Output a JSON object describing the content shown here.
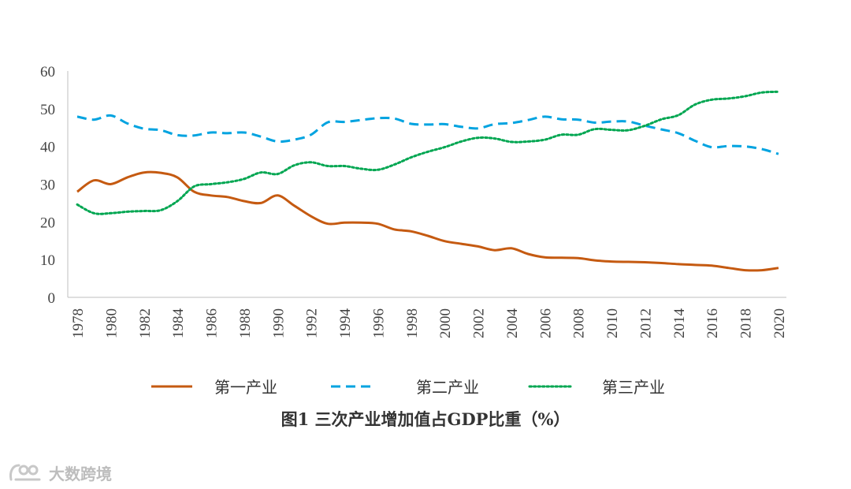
{
  "chart_data": {
    "type": "line",
    "title": "图1  三次产业增加值占GDP比重（%）",
    "xlabel": "",
    "ylabel": "",
    "ylim": [
      0,
      60
    ],
    "yticks": [
      "0",
      "10",
      "20",
      "30",
      "40",
      "50",
      "60"
    ],
    "x": [
      1978,
      1979,
      1980,
      1981,
      1982,
      1983,
      1984,
      1985,
      1986,
      1987,
      1988,
      1989,
      1990,
      1991,
      1992,
      1993,
      1994,
      1995,
      1996,
      1997,
      1998,
      1999,
      2000,
      2001,
      2002,
      2003,
      2004,
      2005,
      2006,
      2007,
      2008,
      2009,
      2010,
      2011,
      2012,
      2013,
      2014,
      2015,
      2016,
      2017,
      2018,
      2019,
      2020
    ],
    "xtick_labels": [
      "1978",
      "1980",
      "1982",
      "1984",
      "1986",
      "1988",
      "1990",
      "1992",
      "1994",
      "1996",
      "1998",
      "2000",
      "2002",
      "2004",
      "2006",
      "2008",
      "2010",
      "2012",
      "2014",
      "2016",
      "2018",
      "2020"
    ],
    "legend_position": "bottom",
    "series": [
      {
        "name": "第一产业",
        "color": "#c55a11",
        "style": "solid",
        "values": [
          28,
          31,
          30,
          31.8,
          33.1,
          33,
          31.8,
          28,
          27,
          26.6,
          25.5,
          25,
          27,
          24.3,
          21.5,
          19.5,
          19.8,
          19.8,
          19.5,
          18,
          17.5,
          16.3,
          14.9,
          14.2,
          13.5,
          12.5,
          13,
          11.5,
          10.6,
          10.5,
          10.4,
          9.8,
          9.5,
          9.4,
          9.3,
          9.1,
          8.8,
          8.6,
          8.4,
          7.8,
          7.2,
          7.2,
          7.8
        ]
      },
      {
        "name": "第二产业",
        "color": "#00a3e0",
        "style": "dashed",
        "values": [
          47.9,
          47.1,
          48.2,
          46.1,
          44.7,
          44.3,
          43,
          42.9,
          43.7,
          43.5,
          43.7,
          42.6,
          41.3,
          41.8,
          43.1,
          46.4,
          46.5,
          47,
          47.5,
          47.4,
          46,
          45.8,
          45.9,
          45.2,
          44.8,
          45.9,
          46.2,
          47,
          47.9,
          47.2,
          47.1,
          46.3,
          46.6,
          46.6,
          45.5,
          44.5,
          43.5,
          41.5,
          39.8,
          40.1,
          40,
          39.3,
          38
        ]
      },
      {
        "name": "第三产业",
        "color": "#00a651",
        "style": "dotted",
        "values": [
          24.6,
          22.3,
          22.3,
          22.7,
          22.9,
          23.1,
          25.5,
          29.4,
          30,
          30.5,
          31.4,
          33.1,
          32.7,
          35,
          35.8,
          34.8,
          34.8,
          34.1,
          33.8,
          35.2,
          37.1,
          38.6,
          39.8,
          41.3,
          42.3,
          42.1,
          41.2,
          41.3,
          41.8,
          43.1,
          43.1,
          44.6,
          44.4,
          44.3,
          45.5,
          47.2,
          48.3,
          51.1,
          52.4,
          52.7,
          53.3,
          54.3,
          54.5
        ]
      }
    ]
  },
  "watermark": {
    "text": "大数跨境",
    "icon": "watermark-logo-icon"
  }
}
